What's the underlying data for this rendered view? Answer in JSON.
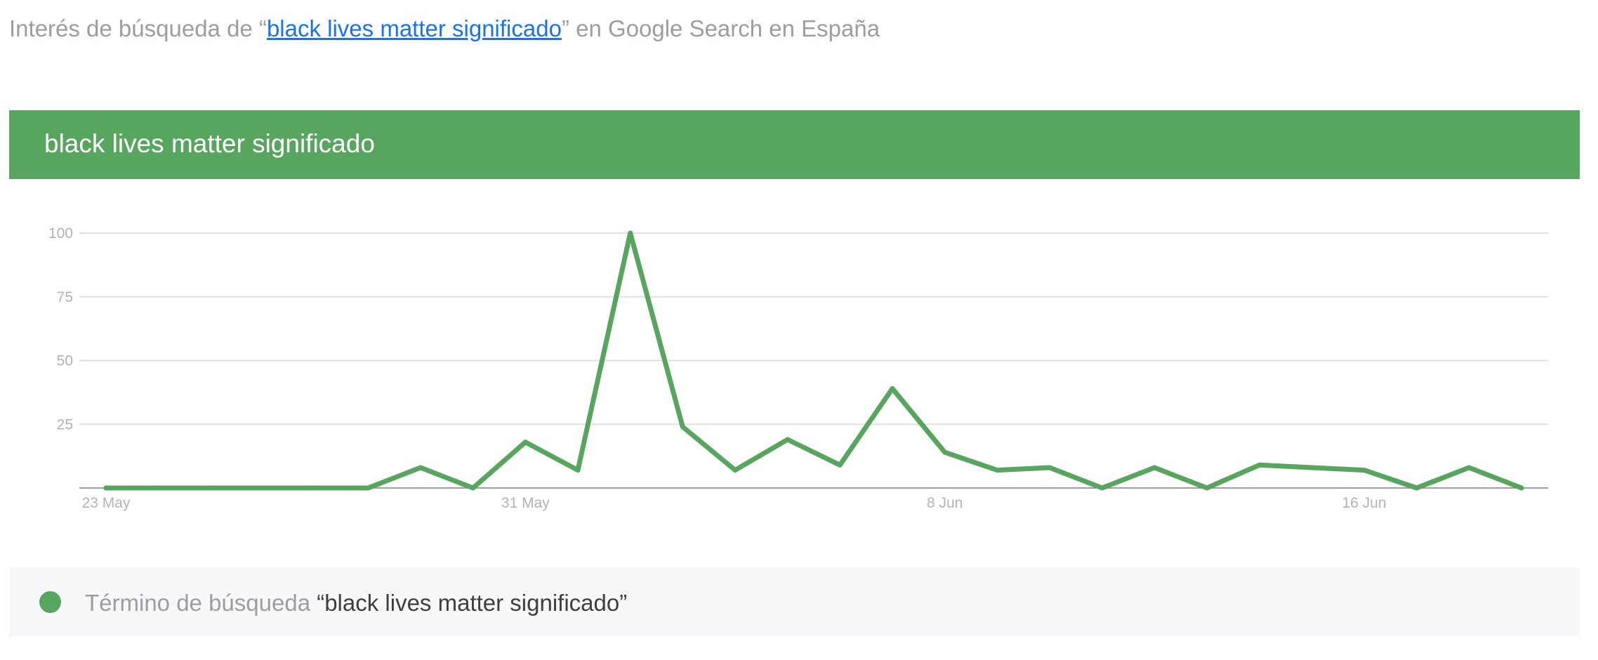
{
  "header": {
    "prefix": "Interés de búsqueda de “",
    "term_link": "black lives matter significado",
    "suffix": "” en Google Search en España"
  },
  "banner": {
    "title": "black lives matter significado"
  },
  "legend": {
    "label": "Término de búsqueda",
    "term": "“black lives matter significado”"
  },
  "colors": {
    "accent": "#57a55e",
    "link": "#1a73e8",
    "muted_text": "#9a9ea3",
    "grid": "#e0e0e0"
  },
  "chart_data": {
    "type": "line",
    "title": "black lives matter significado",
    "xlabel": "",
    "ylabel": "",
    "ylim": [
      0,
      100
    ],
    "grid": true,
    "yticks": [
      25,
      50,
      75,
      100
    ],
    "x": [
      "2020-05-23",
      "2020-05-24",
      "2020-05-25",
      "2020-05-26",
      "2020-05-27",
      "2020-05-28",
      "2020-05-29",
      "2020-05-30",
      "2020-05-31",
      "2020-06-01",
      "2020-06-02",
      "2020-06-03",
      "2020-06-04",
      "2020-06-05",
      "2020-06-06",
      "2020-06-07",
      "2020-06-08",
      "2020-06-09",
      "2020-06-10",
      "2020-06-11",
      "2020-06-12",
      "2020-06-13",
      "2020-06-14",
      "2020-06-15",
      "2020-06-16",
      "2020-06-17",
      "2020-06-18",
      "2020-06-19"
    ],
    "xticks": [
      {
        "date": "2020-05-23",
        "label": "23 May"
      },
      {
        "date": "2020-05-31",
        "label": "31 May"
      },
      {
        "date": "2020-06-08",
        "label": "8 Jun"
      },
      {
        "date": "2020-06-16",
        "label": "16 Jun"
      }
    ],
    "series": [
      {
        "name": "black lives matter significado",
        "color": "#57a55e",
        "values": [
          0,
          0,
          0,
          0,
          0,
          0,
          8,
          0,
          18,
          7,
          100,
          24,
          7,
          19,
          9,
          39,
          14,
          7,
          8,
          0,
          8,
          0,
          9,
          8,
          7,
          0,
          8,
          0
        ]
      }
    ]
  }
}
